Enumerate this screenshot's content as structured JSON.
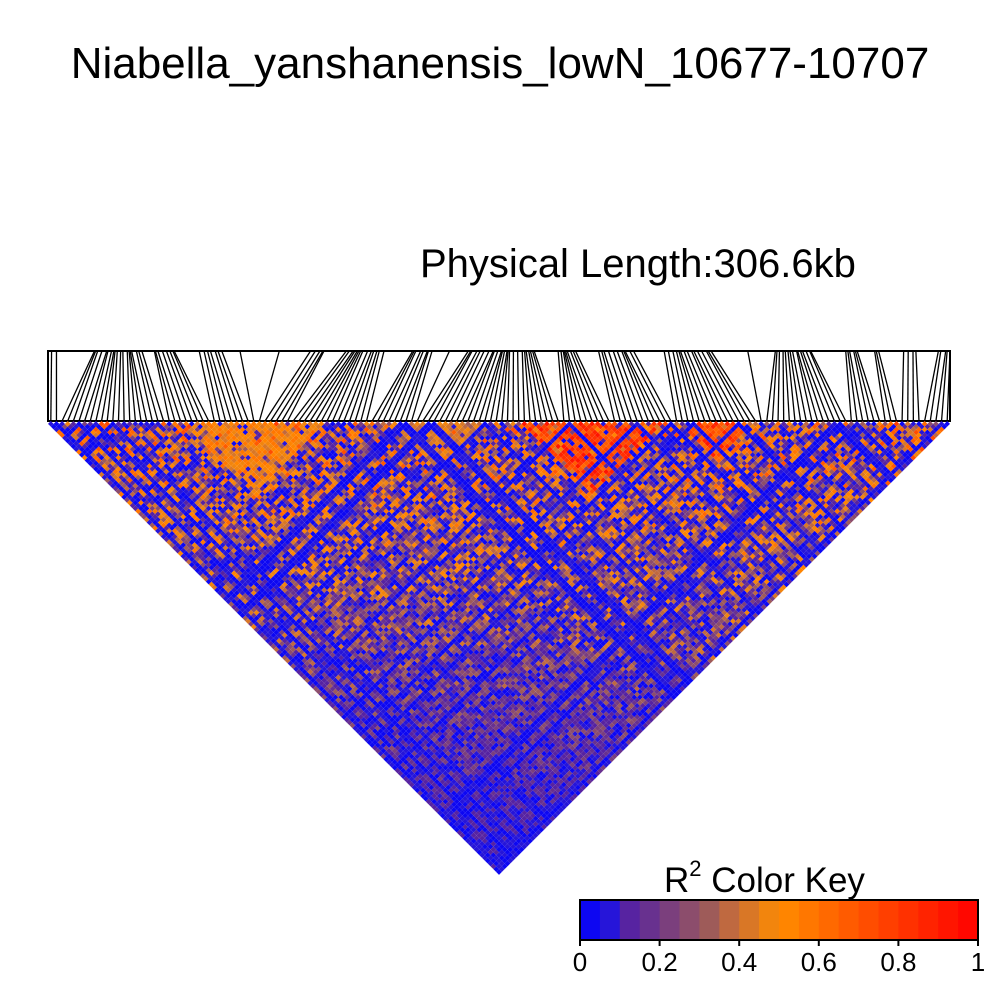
{
  "chart_data": {
    "type": "heatmap",
    "title": "Niabella_yanshanensis_lowN_10677-10707",
    "subtitle": "Physical Length:306.6kb",
    "color_key": {
      "title_base": "R",
      "title_sup": "2",
      "title_rest": " Color Key",
      "range": [
        0,
        1
      ],
      "ticks": [
        "0",
        "0.2",
        "0.4",
        "0.6",
        "0.8",
        "1"
      ],
      "tick_values": [
        0,
        0.2,
        0.4,
        0.6,
        0.8,
        1
      ],
      "bins": 20,
      "colors_low_mid_high": [
        "#0000ff",
        "#ff8c00",
        "#ff0000"
      ]
    },
    "marker_count": 160,
    "high_ld_blocks": [
      {
        "from": 0.52,
        "to": 0.68,
        "r2": 0.85
      },
      {
        "from": 0.7,
        "to": 0.78,
        "r2": 0.82
      },
      {
        "from": 0.15,
        "to": 0.3,
        "r2": 0.55
      },
      {
        "from": 0.38,
        "to": 0.48,
        "r2": 0.45
      }
    ]
  }
}
